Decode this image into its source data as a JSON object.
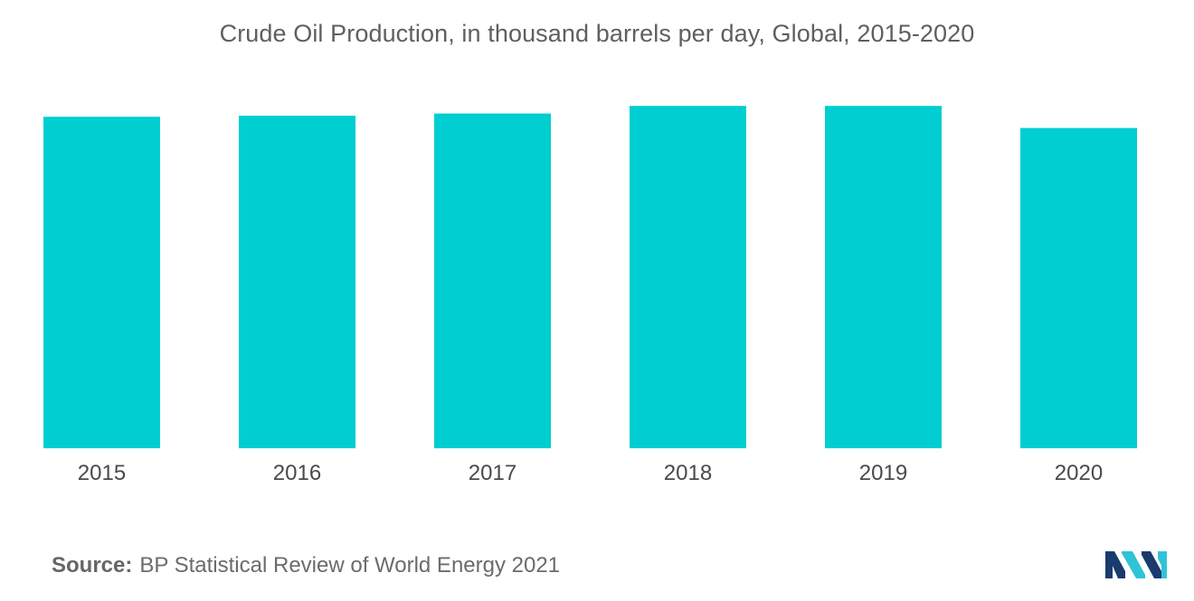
{
  "chart_data": {
    "type": "bar",
    "title": "Crude Oil Production, in thousand barrels per day, Global, 2015-2020",
    "categories": [
      "2015",
      "2016",
      "2017",
      "2018",
      "2019",
      "2020"
    ],
    "values": [
      91.7,
      92.0,
      92.6,
      94.7,
      94.7,
      88.6
    ],
    "xlabel": "",
    "ylabel": "",
    "ylim": [
      0,
      100
    ],
    "grid": false,
    "legend": "none",
    "bar_color": "#00ced1"
  },
  "footer": {
    "source_label": "Source:",
    "source_text": "BP Statistical Review of World Energy 2021"
  },
  "logo": {
    "icon": "mordor-intelligence-logo-icon",
    "colors": [
      "#1a3b6e",
      "#2ec4d6"
    ]
  }
}
